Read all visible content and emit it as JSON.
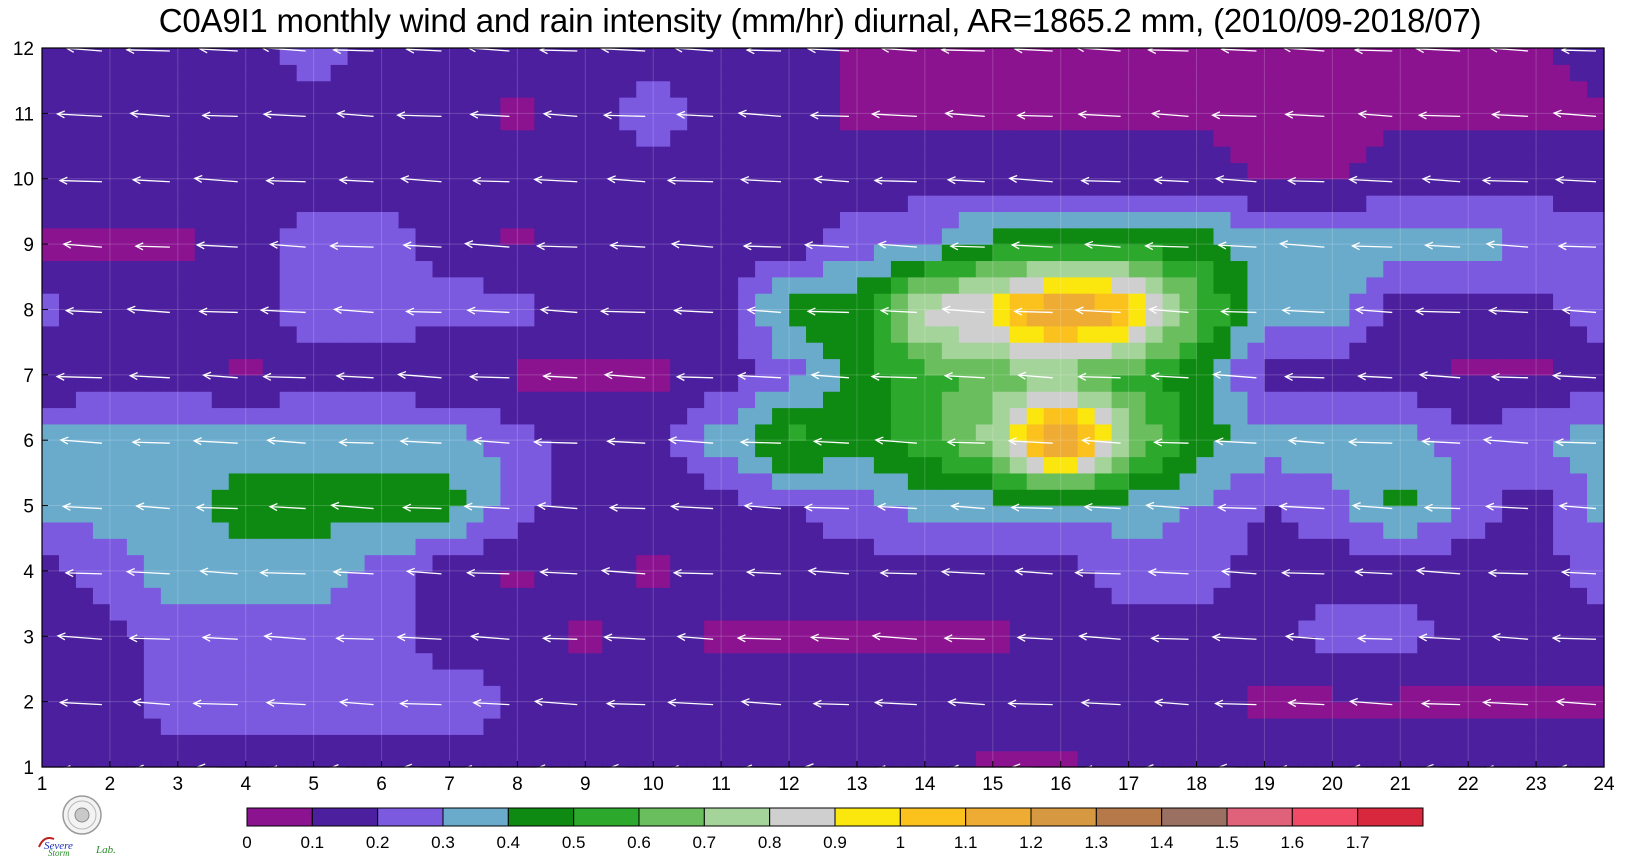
{
  "chart_data": {
    "type": "contour",
    "title": "C0A9I1 monthly wind and rain intensity (mm/hr) diurnal, AR=1865.2 mm, (2010/09-2018/07)",
    "xlabel": "",
    "ylabel": "",
    "x_ticks": [
      "1",
      "2",
      "3",
      "4",
      "5",
      "6",
      "7",
      "8",
      "9",
      "10",
      "11",
      "12",
      "13",
      "14",
      "15",
      "16",
      "17",
      "18",
      "19",
      "20",
      "21",
      "22",
      "23",
      "24"
    ],
    "y_ticks": [
      "1",
      "2",
      "3",
      "4",
      "5",
      "6",
      "7",
      "8",
      "9",
      "10",
      "11",
      "12"
    ],
    "xlim": [
      1,
      24
    ],
    "ylim": [
      1,
      12
    ],
    "grid": true,
    "colorbar": {
      "levels": [
        0,
        0.1,
        0.2,
        0.3,
        0.4,
        0.5,
        0.6,
        0.7,
        0.8,
        0.9,
        1,
        1.1,
        1.2,
        1.3,
        1.4,
        1.5,
        1.6,
        1.7
      ],
      "labels": [
        "0",
        "0.1",
        "0.2",
        "0.3",
        "0.4",
        "0.5",
        "0.6",
        "0.7",
        "0.8",
        "0.9",
        "1",
        "1.1",
        "1.2",
        "1.3",
        "1.4",
        "1.5",
        "1.6",
        "1.7"
      ],
      "colors": [
        "#8c1390",
        "#4c1f9e",
        "#7c5ae0",
        "#6aabcc",
        "#0e8a12",
        "#2ca82c",
        "#6abe5e",
        "#a4d49a",
        "#cfcfcf",
        "#fbe60e",
        "#fbc21e",
        "#eeac34",
        "#d69840",
        "#b67a4a",
        "#9a7062",
        "#e0627a",
        "#f04a66",
        "#d8283e"
      ]
    },
    "rain_intensity": {
      "note_rows": "rows are y = 1..12, columns are x = 1..24, values in mm/hr (estimated)",
      "grid": [
        [
          0.15,
          0.15,
          0.15,
          0.15,
          0.15,
          0.15,
          0.15,
          0.15,
          0.15,
          0.15,
          0.15,
          0.15,
          0.15,
          0.15,
          0.08,
          0.08,
          0.15,
          0.15,
          0.15,
          0.15,
          0.15,
          0.15,
          0.15,
          0.15
        ],
        [
          0.15,
          0.15,
          0.25,
          0.25,
          0.25,
          0.25,
          0.25,
          0.2,
          0.15,
          0.15,
          0.15,
          0.15,
          0.15,
          0.2,
          0.15,
          0.15,
          0.15,
          0.15,
          0.08,
          0.08,
          0.08,
          0.08,
          0.08,
          0.08
        ],
        [
          0.15,
          0.15,
          0.25,
          0.25,
          0.25,
          0.25,
          0.15,
          0.15,
          0.08,
          0.15,
          0.08,
          0.08,
          0.08,
          0.08,
          0.08,
          0.15,
          0.15,
          0.15,
          0.15,
          0.25,
          0.25,
          0.15,
          0.15,
          0.15
        ],
        [
          0.15,
          0.25,
          0.35,
          0.35,
          0.35,
          0.25,
          0.15,
          0.08,
          0.15,
          0.08,
          0.15,
          0.15,
          0.15,
          0.15,
          0.15,
          0.15,
          0.25,
          0.25,
          0.15,
          0.15,
          0.15,
          0.15,
          0.15,
          0.25
        ],
        [
          0.35,
          0.35,
          0.35,
          0.45,
          0.45,
          0.45,
          0.45,
          0.25,
          0.15,
          0.15,
          0.15,
          0.2,
          0.25,
          0.35,
          0.35,
          0.35,
          0.35,
          0.3,
          0.2,
          0.25,
          0.45,
          0.25,
          0.15,
          0.35
        ],
        [
          0.35,
          0.35,
          0.35,
          0.35,
          0.35,
          0.35,
          0.35,
          0.25,
          0.15,
          0.15,
          0.35,
          0.55,
          0.45,
          0.55,
          0.75,
          1.3,
          0.75,
          0.45,
          0.35,
          0.35,
          0.35,
          0.25,
          0.3,
          0.35
        ],
        [
          0.08,
          0.15,
          0.15,
          0.08,
          0.15,
          0.15,
          0.08,
          0.08,
          0.08,
          0.08,
          0.15,
          0.25,
          0.45,
          0.55,
          0.65,
          0.65,
          0.55,
          0.45,
          0.15,
          0.15,
          0.15,
          0.08,
          0.08,
          0.15
        ],
        [
          0.25,
          0.15,
          0.15,
          0.15,
          0.25,
          0.25,
          0.25,
          0.25,
          0.15,
          0.15,
          0.15,
          0.45,
          0.45,
          0.85,
          0.95,
          1.3,
          1.1,
          0.65,
          0.35,
          0.35,
          0.15,
          0.15,
          0.15,
          0.3
        ],
        [
          0.08,
          0.08,
          0.08,
          0.15,
          0.25,
          0.25,
          0.15,
          0.08,
          0.15,
          0.15,
          0.15,
          0.15,
          0.25,
          0.3,
          0.45,
          0.45,
          0.45,
          0.45,
          0.35,
          0.35,
          0.35,
          0.35,
          0.3,
          0.25
        ],
        [
          0.15,
          0.15,
          0.15,
          0.15,
          0.15,
          0.15,
          0.15,
          0.15,
          0.15,
          0.15,
          0.15,
          0.15,
          0.15,
          0.15,
          0.15,
          0.15,
          0.15,
          0.15,
          0.08,
          0.08,
          0.15,
          0.15,
          0.15,
          0.15
        ],
        [
          0.15,
          0.15,
          0.15,
          0.15,
          0.15,
          0.15,
          0.15,
          0.08,
          0.15,
          0.25,
          0.15,
          0.15,
          0.08,
          0.08,
          0.08,
          0.08,
          0.08,
          0.08,
          0.08,
          0.08,
          0.08,
          0.08,
          0.08,
          0.08
        ],
        [
          0.15,
          0.15,
          0.15,
          0.15,
          0.25,
          0.15,
          0.15,
          0.15,
          0.15,
          0.15,
          0.15,
          0.15,
          0.08,
          0.08,
          0.08,
          0.08,
          0.08,
          0.08,
          0.08,
          0.08,
          0.08,
          0.08,
          0.08,
          0.15
        ]
      ]
    },
    "wind": {
      "direction": "toward lower-left (mostly westward)",
      "vector_color": "#ffffff",
      "columns": [
        "1",
        "2",
        "3",
        "4",
        "5",
        "6",
        "7",
        "8",
        "9",
        "10",
        "11",
        "12",
        "13",
        "14",
        "15",
        "16",
        "17",
        "18",
        "19",
        "20",
        "21",
        "22",
        "23",
        "24"
      ]
    },
    "contour_line_color": "#f2a530",
    "logo_text": "Severe Storm Lab."
  }
}
